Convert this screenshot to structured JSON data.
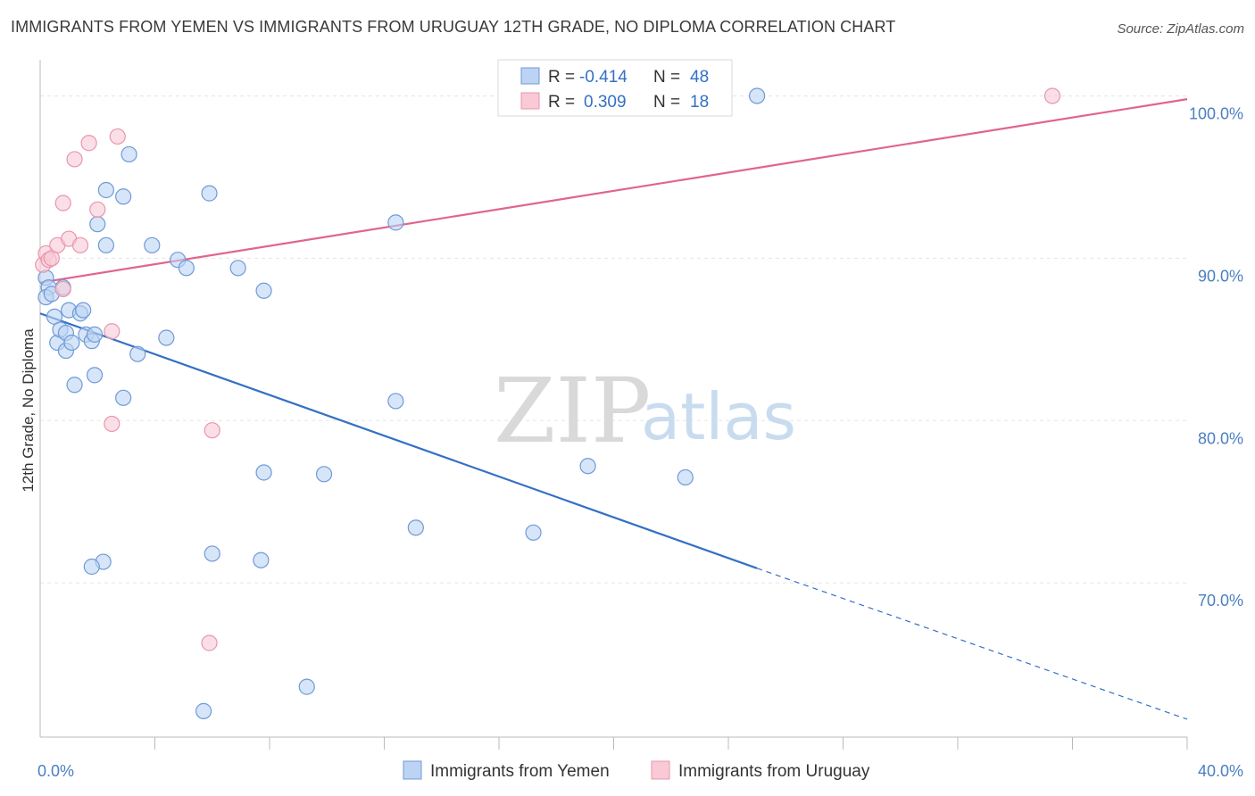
{
  "title": "IMMIGRANTS FROM YEMEN VS IMMIGRANTS FROM URUGUAY 12TH GRADE, NO DIPLOMA CORRELATION CHART",
  "source": "Source: ZipAtlas.com",
  "watermark": {
    "zip": "ZIP",
    "atlas": "atlas"
  },
  "colors": {
    "yemen_fill": "#bcd3f3",
    "yemen_stroke": "#6f9ad8",
    "yemen_line": "#3370c4",
    "uruguay_fill": "#f9c9d6",
    "uruguay_stroke": "#e995ae",
    "uruguay_line": "#e0658d",
    "grid": "#e5e5e5",
    "tick_text": "#4a7fc1"
  },
  "legend": {
    "yemen": {
      "r_label": "R = ",
      "r_value": "-0.414",
      "n_label": "N = ",
      "n_value": "48"
    },
    "uruguay": {
      "r_label": "R = ",
      "r_value": "0.309",
      "n_label": "N = ",
      "n_value": "18"
    }
  },
  "chart_data": {
    "type": "scatter",
    "title": "IMMIGRANTS FROM YEMEN VS IMMIGRANTS FROM URUGUAY 12TH GRADE, NO DIPLOMA CORRELATION CHART",
    "xlabel": "",
    "ylabel": "12th Grade, No Diploma",
    "xlim": [
      0,
      40
    ],
    "ylim": [
      60.5,
      102.5
    ],
    "x_tick_labels": [
      {
        "value": 0,
        "label": "0.0%"
      },
      {
        "value": 40,
        "label": "40.0%"
      }
    ],
    "x_minor_ticks": [
      4,
      8,
      12,
      16,
      20,
      24,
      28,
      32,
      36
    ],
    "y_ticks": [
      {
        "value": 70,
        "label": "70.0%"
      },
      {
        "value": 80,
        "label": "80.0%"
      },
      {
        "value": 90,
        "label": "90.0%"
      },
      {
        "value": 100,
        "label": "100.0%"
      }
    ],
    "series": [
      {
        "name": "Immigrants from Yemen",
        "color": "#6f9ad8",
        "points": [
          [
            0.2,
            88.8
          ],
          [
            0.3,
            88.2
          ],
          [
            0.2,
            87.6
          ],
          [
            0.4,
            87.8
          ],
          [
            0.5,
            86.4
          ],
          [
            0.6,
            84.8
          ],
          [
            0.7,
            85.6
          ],
          [
            0.8,
            88.2
          ],
          [
            0.9,
            85.4
          ],
          [
            0.9,
            84.3
          ],
          [
            1.0,
            86.8
          ],
          [
            1.1,
            84.8
          ],
          [
            1.2,
            82.2
          ],
          [
            1.4,
            86.6
          ],
          [
            1.5,
            86.8
          ],
          [
            1.6,
            85.3
          ],
          [
            1.8,
            84.9
          ],
          [
            1.9,
            85.3
          ],
          [
            1.9,
            82.8
          ],
          [
            2.0,
            92.1
          ],
          [
            2.3,
            94.2
          ],
          [
            2.3,
            90.8
          ],
          [
            2.9,
            93.8
          ],
          [
            2.9,
            81.4
          ],
          [
            3.1,
            96.4
          ],
          [
            3.4,
            84.1
          ],
          [
            3.9,
            90.8
          ],
          [
            4.4,
            85.1
          ],
          [
            4.8,
            89.9
          ],
          [
            5.1,
            89.4
          ],
          [
            5.9,
            94.0
          ],
          [
            6.9,
            89.4
          ],
          [
            7.8,
            88.0
          ],
          [
            12.4,
            92.2
          ],
          [
            12.4,
            81.2
          ],
          [
            7.8,
            76.8
          ],
          [
            9.9,
            76.7
          ],
          [
            19.1,
            77.2
          ],
          [
            22.5,
            76.5
          ],
          [
            13.1,
            73.4
          ],
          [
            17.2,
            73.1
          ],
          [
            6.0,
            71.8
          ],
          [
            7.7,
            71.4
          ],
          [
            2.2,
            71.3
          ],
          [
            1.8,
            71.0
          ],
          [
            9.3,
            63.6
          ],
          [
            5.7,
            62.1
          ],
          [
            25.0,
            100.0
          ]
        ]
      },
      {
        "name": "Immigrants from Uruguay",
        "color": "#e995ae",
        "points": [
          [
            0.1,
            89.6
          ],
          [
            0.2,
            90.3
          ],
          [
            0.3,
            89.9
          ],
          [
            0.4,
            90.0
          ],
          [
            0.6,
            90.8
          ],
          [
            0.8,
            88.1
          ],
          [
            0.8,
            93.4
          ],
          [
            1.0,
            91.2
          ],
          [
            1.2,
            96.1
          ],
          [
            1.4,
            90.8
          ],
          [
            1.7,
            97.1
          ],
          [
            2.0,
            93.0
          ],
          [
            2.5,
            85.5
          ],
          [
            2.5,
            79.8
          ],
          [
            2.7,
            97.5
          ],
          [
            6.0,
            79.4
          ],
          [
            5.9,
            66.3
          ],
          [
            35.3,
            100.0
          ]
        ]
      }
    ],
    "trend_lines": [
      {
        "series": "Immigrants from Yemen",
        "x0": 0,
        "y0": 86.6,
        "x1": 25,
        "y1": 70.9,
        "dashed_to_x": 40,
        "dashed_to_y": 61.6
      },
      {
        "series": "Immigrants from Uruguay",
        "x0": 0,
        "y0": 88.5,
        "x1": 40,
        "y1": 99.8
      }
    ],
    "legend_position": "top-center",
    "bottom_legend": [
      "Immigrants from Yemen",
      "Immigrants from Uruguay"
    ]
  }
}
